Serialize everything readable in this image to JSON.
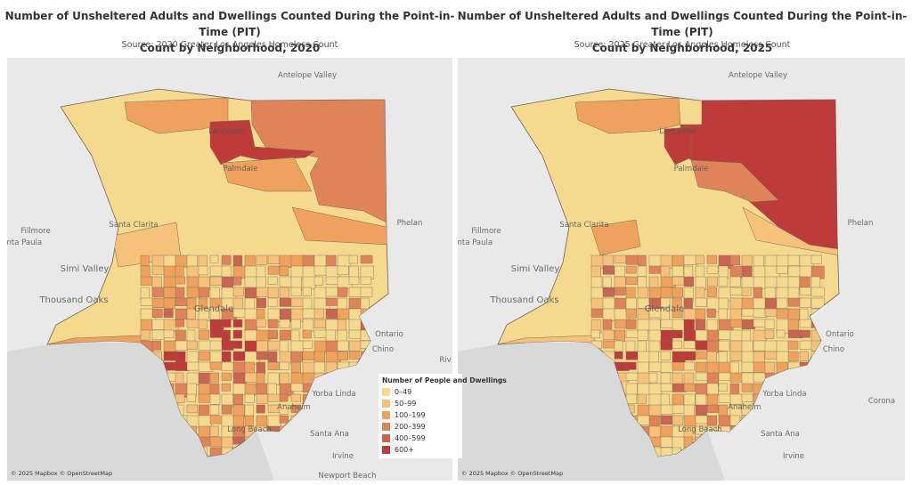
{
  "maps": [
    {
      "title_lines": [
        "Number of Unsheltered Adults and Dwellings Counted During the Point-in-Time (PIT)",
        "Count by Neighborhood, 2020"
      ],
      "subtitle": "Source: 2020 Greater Los Angeles Homeless Count",
      "attribution": "© 2025 Mapbox © OpenStreetMap",
      "places": [
        "Antelope Valley",
        "Lancaster",
        "Palmdale",
        "Santa Clarita",
        "Fillmore",
        "Santa Paula",
        "Phelan",
        "Simi Valley",
        "Thousand Oaks",
        "Glendale",
        "Ontario",
        "Chino",
        "Riv",
        "Yorba Linda",
        "Anaheim",
        "Long Beach",
        "Santa Ana",
        "Irvine",
        "Newport Beach"
      ]
    },
    {
      "title_lines": [
        "Number of Unsheltered Adults and Dwellings Counted During the Point-in-Time (PIT)",
        "Count by Neighborhood, 2025"
      ],
      "subtitle": "Source: 2025 Greater Los Angeles Homeless Count",
      "attribution": "© 2025 Mapbox © OpenStreetMap",
      "places": [
        "Antelope Valley",
        "Lancaster",
        "Palmdale",
        "Santa Clarita",
        "Fillmore",
        "Santa Paula",
        "Phelan",
        "Simi Valley",
        "Thousand Oaks",
        "Glendale",
        "Ontario",
        "Chino",
        "Yorba Linda",
        "Corona",
        "Anaheim",
        "Long Beach",
        "Santa Ana",
        "Irvine"
      ]
    }
  ],
  "legend": {
    "title": "Number of People and Dwellings",
    "items": [
      {
        "label": "0–49",
        "color": "#f5d98e"
      },
      {
        "label": "50–99",
        "color": "#f4c27a"
      },
      {
        "label": "100–199",
        "color": "#eea25e"
      },
      {
        "label": "200–399",
        "color": "#df8459"
      },
      {
        "label": "400–599",
        "color": "#c96652"
      },
      {
        "label": "600+",
        "color": "#bd3c39"
      }
    ]
  }
}
